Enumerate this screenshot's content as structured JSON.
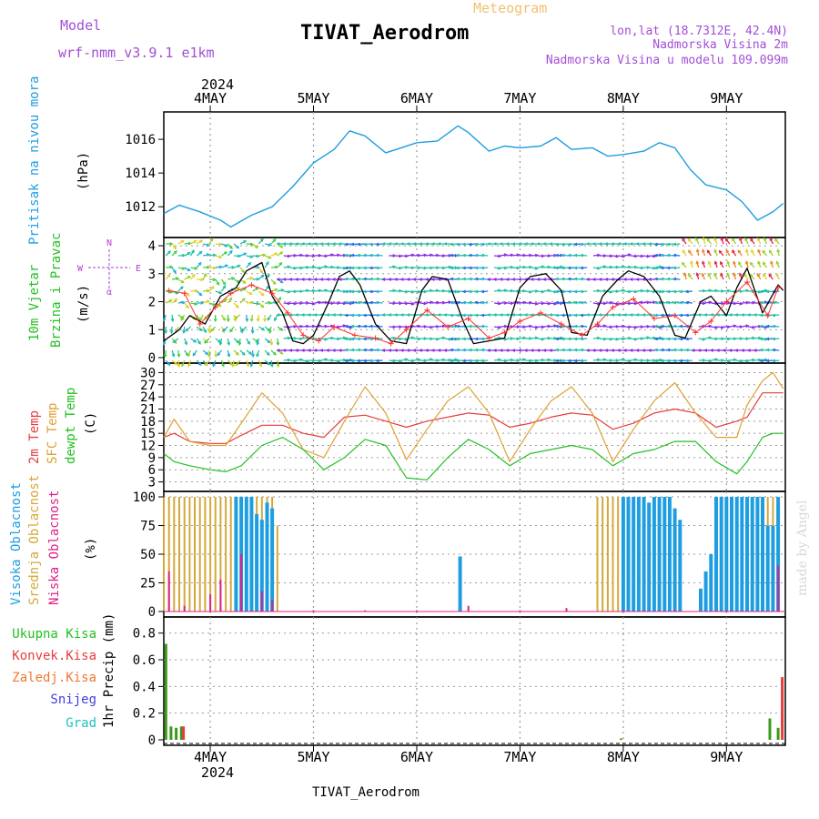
{
  "header": {
    "model_label": "Model",
    "model_name": "wrf-nmm_v3.9.1 e1km",
    "title": "TIVAT_Aerodrom",
    "meteogram_label": "Meteogram",
    "lonlat": "lon,lat (18.7312E, 42.4N)",
    "elevation": "Nadmorska Visina 2m",
    "model_elevation": "Nadmorska Visina u modelu 109.099m",
    "watermark": "made by Angel",
    "footer": "TIVAT_Aerodrom"
  },
  "time_axis": {
    "year": "2024",
    "days": [
      "4MAY",
      "5MAY",
      "6MAY",
      "7MAY",
      "8MAY",
      "9MAY"
    ]
  },
  "colors": {
    "pressure": "#1e9ee0",
    "wind_speed": "#000000",
    "wind_obs": "#ff3030",
    "temp2m": "#e83c3c",
    "sfc_temp": "#e0a030",
    "dewpoint": "#22c022",
    "high_cloud": "#1e9ee0",
    "mid_cloud": "#d4a83a",
    "low_cloud": "#e0208a",
    "total_precip": "#3a9a1a",
    "conv_precip": "#e83c3c",
    "frz_precip": "#f07830",
    "snow": "#4040e0",
    "grad": "#20c0c0"
  },
  "chart_data": [
    {
      "type": "line",
      "title": "",
      "ylabel_main": "Pritisak na nivou mora",
      "ylabel_unit": "(hPa)",
      "yticks": [
        "1012",
        "1014",
        "1016"
      ],
      "ylim": [
        1010.5,
        1017.3
      ],
      "x_days": [
        3.55,
        3.7,
        3.9,
        4.1,
        4.2,
        4.4,
        4.6,
        4.8,
        5.0,
        5.2,
        5.35,
        5.5,
        5.7,
        5.85,
        6.0,
        6.2,
        6.4,
        6.5,
        6.7,
        6.85,
        7.0,
        7.2,
        7.35,
        7.5,
        7.7,
        7.85,
        8.0,
        8.2,
        8.35,
        8.5,
        8.65,
        8.8,
        9.0,
        9.15,
        9.3,
        9.45,
        9.55
      ],
      "values": [
        1011.6,
        1012.1,
        1011.7,
        1011.2,
        1010.8,
        1011.5,
        1012.0,
        1013.2,
        1014.6,
        1015.4,
        1016.5,
        1016.2,
        1015.2,
        1015.5,
        1015.8,
        1015.9,
        1016.8,
        1016.4,
        1015.3,
        1015.6,
        1015.5,
        1015.6,
        1016.1,
        1015.4,
        1015.5,
        1015.0,
        1015.1,
        1015.3,
        1015.8,
        1015.5,
        1014.2,
        1013.3,
        1013.0,
        1012.3,
        1011.2,
        1011.7,
        1012.2
      ]
    },
    {
      "type": "line",
      "title": "",
      "ylabel_main": "10m Vjetar",
      "ylabel_sub": "Brzina i Pravac",
      "ylabel_unit": "(m/s)",
      "yticks": [
        "0",
        "1",
        "2",
        "3",
        "4"
      ],
      "ylim": [
        0,
        4.1
      ],
      "compass": [
        "N",
        "E",
        "W",
        "α"
      ],
      "x_days": [
        3.55,
        3.7,
        3.8,
        3.95,
        4.1,
        4.25,
        4.35,
        4.5,
        4.6,
        4.7,
        4.8,
        4.9,
        5.0,
        5.15,
        5.25,
        5.35,
        5.45,
        5.6,
        5.75,
        5.9,
        6.05,
        6.15,
        6.3,
        6.45,
        6.55,
        6.7,
        6.85,
        7.0,
        7.1,
        7.25,
        7.4,
        7.5,
        7.65,
        7.8,
        7.95,
        8.05,
        8.2,
        8.35,
        8.5,
        8.6,
        8.75,
        8.85,
        9.0,
        9.1,
        9.2,
        9.35,
        9.5,
        9.55
      ],
      "values": [
        0.6,
        1.0,
        1.5,
        1.2,
        2.2,
        2.5,
        3.1,
        3.4,
        2.2,
        1.6,
        0.6,
        0.5,
        0.8,
        2.0,
        2.9,
        3.1,
        2.6,
        1.2,
        0.6,
        0.5,
        2.4,
        2.9,
        2.8,
        1.3,
        0.5,
        0.6,
        0.7,
        2.5,
        2.9,
        3.0,
        2.4,
        0.9,
        0.8,
        2.2,
        2.8,
        3.1,
        2.9,
        2.2,
        0.8,
        0.7,
        2.0,
        2.2,
        1.5,
        2.5,
        3.2,
        1.6,
        2.6,
        2.4
      ],
      "obs_x": [
        3.6,
        3.75,
        3.9,
        4.05,
        4.2,
        4.4,
        4.6,
        4.75,
        4.9,
        5.05,
        5.2,
        5.4,
        5.6,
        5.75,
        5.9,
        6.1,
        6.3,
        6.5,
        6.7,
        6.85,
        7.0,
        7.2,
        7.4,
        7.6,
        7.75,
        7.9,
        8.1,
        8.3,
        8.5,
        8.7,
        8.85,
        9.0,
        9.2,
        9.4,
        9.5
      ],
      "obs_values": [
        2.4,
        2.3,
        1.2,
        1.8,
        2.3,
        2.6,
        2.3,
        1.6,
        0.8,
        0.6,
        1.1,
        0.8,
        0.7,
        0.5,
        1.0,
        1.7,
        1.1,
        1.4,
        0.7,
        0.9,
        1.3,
        1.6,
        1.2,
        0.8,
        1.2,
        1.8,
        2.1,
        1.4,
        1.5,
        0.9,
        1.3,
        2.0,
        2.7,
        1.5,
        2.5
      ]
    },
    {
      "type": "line",
      "title": "",
      "ylabel_cols": [
        "2m Temp",
        "SFC Temp",
        "dewpt Temp"
      ],
      "ylabel_unit": "(C)",
      "yticks": [
        "3",
        "6",
        "9",
        "12",
        "15",
        "18",
        "21",
        "24",
        "27",
        "30"
      ],
      "ylim": [
        2,
        31
      ],
      "x_days": [
        3.55,
        3.65,
        3.8,
        4.0,
        4.15,
        4.3,
        4.5,
        4.7,
        4.9,
        5.1,
        5.3,
        5.5,
        5.7,
        5.9,
        6.1,
        6.3,
        6.5,
        6.7,
        6.9,
        7.1,
        7.3,
        7.5,
        7.7,
        7.9,
        8.1,
        8.3,
        8.5,
        8.7,
        8.9,
        9.1,
        9.2,
        9.35,
        9.45,
        9.55
      ],
      "series": [
        {
          "name": "2m Temp",
          "values": [
            14,
            15,
            13,
            12.5,
            12.5,
            14.5,
            17,
            17,
            15,
            14,
            19,
            19.5,
            18,
            16.5,
            18,
            19,
            20,
            19.5,
            16.5,
            17.5,
            19,
            20,
            19.5,
            16,
            17.5,
            20,
            21,
            20,
            16.5,
            18,
            19,
            25,
            25,
            25
          ]
        },
        {
          "name": "SFC Temp",
          "values": [
            14,
            18.5,
            13,
            12,
            12,
            17.5,
            25,
            20,
            11,
            9,
            18,
            26.5,
            20,
            8.5,
            16,
            23,
            26.5,
            20,
            8,
            16,
            23,
            26.5,
            20,
            8,
            16,
            23,
            27.5,
            20,
            14,
            14,
            22,
            28,
            30,
            26
          ]
        },
        {
          "name": "dewpt Temp",
          "values": [
            10,
            8,
            7,
            6,
            5.5,
            7,
            12,
            14,
            11,
            6,
            9,
            13.5,
            12,
            4,
            3.5,
            9,
            13.5,
            11,
            7,
            10,
            11,
            12,
            11,
            7,
            10,
            11,
            13,
            13,
            8,
            5,
            8,
            14,
            15,
            15
          ]
        }
      ]
    },
    {
      "type": "bar",
      "title": "",
      "ylabel_cols": [
        "Visoka Oblacnost",
        "Srednja Oblacnost",
        "Niska Oblacnost"
      ],
      "ylabel_unit": "(%)",
      "yticks": [
        "0",
        "25",
        "50",
        "75",
        "100"
      ],
      "ylim": [
        0,
        100
      ],
      "series": [
        {
          "name": "Visoka Oblacnost",
          "x_days": [
            4.25,
            4.3,
            4.35,
            4.4,
            4.45,
            4.5,
            4.55,
            4.6,
            6.42,
            8.0,
            8.05,
            8.1,
            8.15,
            8.2,
            8.25,
            8.3,
            8.35,
            8.4,
            8.45,
            8.5,
            8.55,
            8.75,
            8.8,
            8.85,
            8.9,
            8.95,
            9.0,
            9.05,
            9.1,
            9.15,
            9.2,
            9.25,
            9.3,
            9.35,
            9.4,
            9.45,
            9.5
          ],
          "values": [
            100,
            100,
            100,
            100,
            85,
            80,
            95,
            90,
            48,
            100,
            100,
            100,
            100,
            100,
            95,
            100,
            100,
            100,
            100,
            90,
            80,
            20,
            35,
            50,
            100,
            100,
            100,
            100,
            100,
            100,
            100,
            100,
            100,
            100,
            75,
            75,
            100
          ]
        },
        {
          "name": "Srednja Oblacnost",
          "x_days": [
            3.55,
            3.6,
            3.65,
            3.7,
            3.75,
            3.8,
            3.85,
            3.9,
            3.95,
            4.0,
            4.05,
            4.1,
            4.15,
            4.2,
            4.25,
            4.3,
            4.35,
            4.4,
            4.45,
            4.5,
            4.55,
            4.6,
            4.65,
            7.75,
            7.8,
            7.85,
            7.9,
            7.95,
            8.0,
            8.05,
            8.9,
            8.95,
            9.0,
            9.05,
            9.1,
            9.15,
            9.2,
            9.25,
            9.3,
            9.35,
            9.4,
            9.45,
            9.5
          ],
          "values": [
            100,
            100,
            100,
            100,
            100,
            100,
            100,
            100,
            100,
            100,
            100,
            100,
            100,
            100,
            100,
            100,
            100,
            100,
            100,
            100,
            100,
            100,
            75,
            100,
            100,
            100,
            100,
            100,
            100,
            100,
            100,
            100,
            100,
            100,
            100,
            100,
            100,
            100,
            100,
            100,
            100,
            100,
            100
          ]
        },
        {
          "name": "Niska Oblacnost",
          "x_days": [
            3.6,
            3.75,
            4.0,
            4.1,
            4.3,
            4.5,
            4.6,
            5.0,
            5.5,
            6.0,
            6.5,
            7.0,
            7.45,
            8.0,
            8.5,
            9.0,
            9.5
          ],
          "values": [
            35,
            5,
            15,
            28,
            50,
            18,
            10,
            1,
            1,
            1,
            5,
            1,
            3,
            1,
            1,
            1,
            40
          ]
        }
      ]
    },
    {
      "type": "bar",
      "title": "",
      "legend": [
        "Ukupna Kisa",
        "Konvek.Kisa",
        "Zaledj.Kisa",
        "Snijeg",
        "Grad"
      ],
      "ylabel_unit": "1hr Precip (mm)",
      "yticks": [
        "0",
        "0.2",
        "0.4",
        "0.6",
        "0.8"
      ],
      "ylim": [
        0,
        0.88
      ],
      "series": [
        {
          "name": "Ukupna Kisa",
          "x_days": [
            3.57,
            3.62,
            3.67,
            3.72,
            7.98,
            9.42,
            9.5
          ],
          "values": [
            0.72,
            0.1,
            0.09,
            0.1,
            0.01,
            0.16,
            0.09
          ]
        },
        {
          "name": "Konvek.Kisa",
          "x_days": [
            3.74,
            9.54
          ],
          "values": [
            0.1,
            0.47
          ]
        }
      ]
    }
  ]
}
